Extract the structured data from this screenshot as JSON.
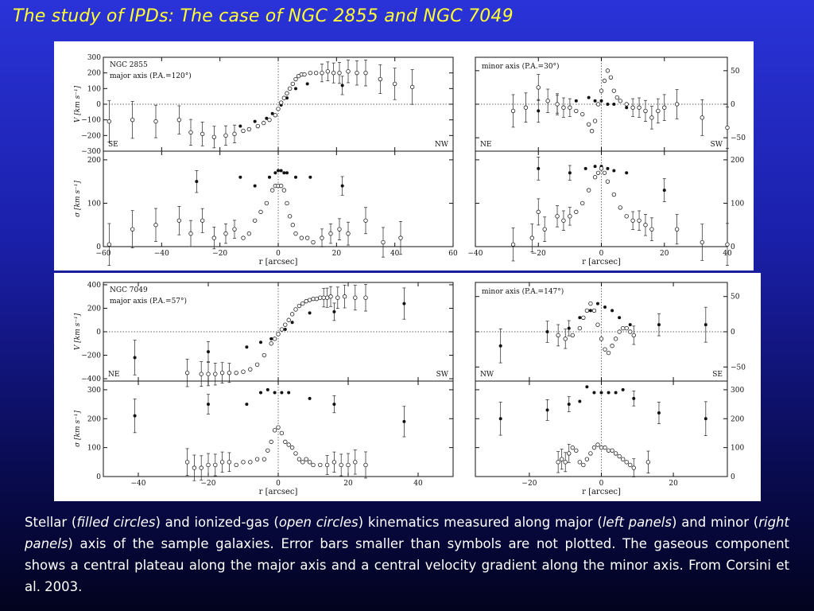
{
  "slide": {
    "title": "The study of IPDs: The case of NGC 2855 and NGC 7049"
  },
  "caption": {
    "p1": "Stellar (",
    "i1": "filled circles",
    "p2": ") and ionized-gas (",
    "i2": "open circles",
    "p3": ") kinematics measured along major (",
    "i3": "left panels",
    "p4": ") and minor (",
    "i4": "right panels",
    "p5": ") axis of the sample galaxies. Error bars smaller than symbols are not plotted. The gaseous component shows a central plateau along the major axis and a central velocity gradient along the minor axis. From Corsini et al. 2003."
  },
  "chart_data": [
    {
      "type": "scatter",
      "galaxy": "NGC 2855",
      "panel": "major-axis-velocity",
      "title": "NGC 2855",
      "subtitle": "major axis (P.A.=120°)",
      "xlabel": "r [arcsec]",
      "ylabel": "V [km s⁻¹]",
      "xlim": [
        -60,
        60
      ],
      "ylim": [
        -300,
        300
      ],
      "xticks": [
        -60,
        -40,
        -20,
        0,
        20,
        40,
        60
      ],
      "yticks": [
        -300,
        -200,
        -100,
        0,
        100,
        200,
        300
      ],
      "corner_left": "SE",
      "corner_right": "NW",
      "series": [
        {
          "marker": "filled",
          "x": [
            -13,
            -8,
            -4,
            -2,
            1,
            3,
            6,
            10,
            22
          ],
          "y": [
            -140,
            -110,
            -90,
            -60,
            -5,
            40,
            100,
            130,
            120
          ]
        },
        {
          "marker": "open",
          "x": [
            -58,
            -50,
            -42,
            -34,
            -30,
            -26,
            -22,
            -18,
            -15,
            -12,
            -10,
            -7,
            -5,
            -3,
            -1,
            0,
            1,
            2,
            3,
            4,
            5,
            6,
            7,
            8,
            9,
            11,
            13,
            15,
            17,
            19,
            21,
            24,
            27,
            30,
            35,
            40,
            46
          ],
          "y": [
            -110,
            -100,
            -110,
            -100,
            -180,
            -190,
            -210,
            -200,
            -190,
            -170,
            -160,
            -140,
            -120,
            -100,
            -70,
            -30,
            10,
            40,
            70,
            100,
            130,
            160,
            180,
            190,
            190,
            200,
            200,
            200,
            210,
            200,
            200,
            210,
            200,
            200,
            160,
            130,
            110
          ]
        }
      ]
    },
    {
      "type": "scatter",
      "galaxy": "NGC 2855",
      "panel": "major-axis-dispersion",
      "xlabel": "r [arcsec]",
      "ylabel": "σ [km s⁻¹]",
      "xlim": [
        -60,
        60
      ],
      "ylim": [
        0,
        220
      ],
      "xticks": [
        -60,
        -40,
        -20,
        0,
        20,
        40,
        60
      ],
      "yticks": [
        0,
        100,
        200
      ],
      "series": [
        {
          "marker": "filled",
          "x": [
            -28,
            -13,
            -8,
            -3,
            -1,
            0,
            1,
            2,
            3,
            6,
            11,
            22
          ],
          "y": [
            150,
            160,
            140,
            160,
            170,
            175,
            175,
            170,
            170,
            160,
            160,
            140
          ]
        },
        {
          "marker": "open",
          "x": [
            -58,
            -50,
            -42,
            -34,
            -30,
            -26,
            -22,
            -18,
            -15,
            -12,
            -10,
            -8,
            -6,
            -4,
            -2,
            -1,
            0,
            1,
            2,
            3,
            4,
            5,
            6,
            8,
            10,
            12,
            15,
            18,
            21,
            24,
            30,
            36,
            42
          ],
          "y": [
            5,
            40,
            50,
            60,
            30,
            60,
            20,
            30,
            40,
            20,
            30,
            60,
            80,
            100,
            130,
            140,
            140,
            140,
            130,
            100,
            70,
            50,
            30,
            20,
            20,
            10,
            20,
            30,
            40,
            30,
            60,
            10,
            20
          ]
        }
      ]
    },
    {
      "type": "scatter",
      "galaxy": "NGC 2855",
      "panel": "minor-axis-velocity",
      "subtitle": "minor axis (P.A.=30°)",
      "xlabel": "r [arcsec]",
      "xlim": [
        -40,
        40
      ],
      "ylim": [
        -70,
        70
      ],
      "xticks": [
        -40,
        -20,
        0,
        20,
        40
      ],
      "yticks": [
        -50,
        0,
        50
      ],
      "corner_left": "NE",
      "corner_right": "SW",
      "series": [
        {
          "marker": "filled",
          "x": [
            -20,
            -14,
            -8,
            -4,
            -2,
            0,
            2,
            4,
            8
          ],
          "y": [
            -10,
            0,
            5,
            10,
            5,
            5,
            0,
            0,
            -5
          ]
        },
        {
          "marker": "open",
          "x": [
            -28,
            -24,
            -20,
            -17,
            -14,
            -12,
            -10,
            -8,
            -6,
            -4,
            -3,
            -2,
            -1,
            0,
            1,
            2,
            3,
            4,
            5,
            6,
            8,
            10,
            12,
            14,
            16,
            18,
            20,
            24,
            32,
            40
          ],
          "y": [
            -10,
            -5,
            25,
            5,
            0,
            -5,
            -5,
            -10,
            -15,
            -30,
            -40,
            -25,
            0,
            20,
            35,
            50,
            40,
            20,
            10,
            5,
            0,
            -5,
            -5,
            -10,
            -20,
            -10,
            -5,
            0,
            -20,
            -35
          ]
        }
      ]
    },
    {
      "type": "scatter",
      "galaxy": "NGC 2855",
      "panel": "minor-axis-dispersion",
      "xlabel": "r [arcsec]",
      "xlim": [
        -40,
        40
      ],
      "ylim": [
        0,
        220
      ],
      "xticks": [
        -40,
        -20,
        0,
        20,
        40
      ],
      "yticks": [
        0,
        100,
        200
      ],
      "series": [
        {
          "marker": "filled",
          "x": [
            -20,
            -10,
            -5,
            -2,
            0,
            2,
            4,
            8,
            20
          ],
          "y": [
            180,
            170,
            180,
            185,
            185,
            180,
            175,
            170,
            130
          ]
        },
        {
          "marker": "open",
          "x": [
            -28,
            -22,
            -20,
            -18,
            -14,
            -12,
            -10,
            -8,
            -6,
            -4,
            -2,
            -1,
            0,
            1,
            2,
            4,
            6,
            8,
            10,
            12,
            14,
            16,
            24,
            32,
            40
          ],
          "y": [
            5,
            20,
            80,
            40,
            70,
            60,
            70,
            80,
            100,
            130,
            160,
            170,
            180,
            170,
            150,
            120,
            90,
            70,
            60,
            60,
            50,
            40,
            40,
            10,
            5
          ]
        }
      ]
    },
    {
      "type": "scatter",
      "galaxy": "NGC 7049",
      "panel": "major-axis-velocity",
      "title": "NGC 7049",
      "subtitle": "major axis (P.A.=57°)",
      "xlabel": "r [arcsec]",
      "ylabel": "V [km s⁻¹]",
      "xlim": [
        -50,
        50
      ],
      "ylim": [
        -420,
        420
      ],
      "xticks": [
        -40,
        -20,
        0,
        20,
        40
      ],
      "yticks": [
        -400,
        -200,
        0,
        200,
        400
      ],
      "corner_left": "NE",
      "corner_right": "SW",
      "series": [
        {
          "marker": "filled",
          "x": [
            -41,
            -20,
            -9,
            -5,
            -2,
            0,
            2,
            4,
            9,
            16,
            36
          ],
          "y": [
            -220,
            -170,
            -130,
            -90,
            -60,
            -20,
            20,
            80,
            160,
            170,
            240
          ]
        },
        {
          "marker": "open",
          "x": [
            -26,
            -22,
            -20,
            -18,
            -16,
            -14,
            -12,
            -10,
            -8,
            -6,
            -4,
            -2,
            -1,
            0,
            1,
            2,
            3,
            4,
            5,
            6,
            7,
            8,
            9,
            10,
            11,
            12,
            13,
            14,
            15,
            17,
            19,
            22,
            25
          ],
          "y": [
            -350,
            -360,
            -360,
            -360,
            -350,
            -350,
            -350,
            -340,
            -320,
            -280,
            -200,
            -100,
            -60,
            -20,
            20,
            60,
            100,
            150,
            190,
            220,
            240,
            260,
            270,
            280,
            280,
            290,
            290,
            290,
            300,
            290,
            300,
            290,
            290
          ]
        }
      ]
    },
    {
      "type": "scatter",
      "galaxy": "NGC 7049",
      "panel": "major-axis-dispersion",
      "xlabel": "r [arcsec]",
      "ylabel": "σ [km s⁻¹]",
      "xlim": [
        -50,
        50
      ],
      "ylim": [
        0,
        330
      ],
      "xticks": [
        -40,
        -20,
        0,
        20,
        40
      ],
      "yticks": [
        0,
        100,
        200,
        300
      ],
      "series": [
        {
          "marker": "filled",
          "x": [
            -41,
            -20,
            -9,
            -5,
            -3,
            -1,
            1,
            3,
            9,
            16,
            36
          ],
          "y": [
            210,
            250,
            250,
            290,
            300,
            290,
            290,
            290,
            270,
            250,
            190
          ]
        },
        {
          "marker": "open",
          "x": [
            -26,
            -24,
            -22,
            -20,
            -18,
            -16,
            -14,
            -12,
            -10,
            -8,
            -6,
            -4,
            -3,
            -2,
            -1,
            0,
            1,
            2,
            3,
            4,
            5,
            6,
            7,
            8,
            9,
            10,
            12,
            14,
            16,
            18,
            20,
            22,
            25
          ],
          "y": [
            50,
            30,
            30,
            40,
            40,
            50,
            50,
            40,
            50,
            50,
            60,
            60,
            90,
            120,
            160,
            170,
            150,
            120,
            110,
            100,
            80,
            60,
            50,
            60,
            50,
            40,
            40,
            40,
            50,
            40,
            40,
            50,
            40
          ]
        }
      ]
    },
    {
      "type": "scatter",
      "galaxy": "NGC 7049",
      "panel": "minor-axis-velocity",
      "subtitle": "minor axis (P.A.=147°)",
      "xlabel": "r [arcsec]",
      "xlim": [
        -35,
        35
      ],
      "ylim": [
        -70,
        70
      ],
      "xticks": [
        -20,
        0,
        20
      ],
      "yticks": [
        -50,
        0,
        50
      ],
      "corner_left": "NW",
      "corner_right": "SE",
      "series": [
        {
          "marker": "filled",
          "x": [
            -28,
            -15,
            -9,
            -6,
            -3,
            -1,
            1,
            3,
            5,
            8,
            16,
            29
          ],
          "y": [
            -20,
            0,
            5,
            20,
            30,
            40,
            35,
            30,
            20,
            10,
            10,
            10
          ]
        },
        {
          "marker": "open",
          "x": [
            -12,
            -10,
            -8,
            -6,
            -5,
            -4,
            -3,
            -2,
            -1,
            0,
            1,
            2,
            3,
            4,
            5,
            6,
            7,
            8,
            9
          ],
          "y": [
            -5,
            -10,
            -5,
            5,
            20,
            30,
            40,
            30,
            10,
            -10,
            -25,
            -30,
            -20,
            -10,
            0,
            5,
            5,
            0,
            -5
          ]
        }
      ]
    },
    {
      "type": "scatter",
      "galaxy": "NGC 7049",
      "panel": "minor-axis-dispersion",
      "xlabel": "r [arcsec]",
      "xlim": [
        -35,
        35
      ],
      "ylim": [
        0,
        330
      ],
      "xticks": [
        -20,
        0,
        20
      ],
      "yticks": [
        0,
        100,
        200,
        300
      ],
      "series": [
        {
          "marker": "filled",
          "x": [
            -28,
            -15,
            -9,
            -6,
            -4,
            -2,
            0,
            2,
            4,
            6,
            9,
            16,
            29
          ],
          "y": [
            200,
            230,
            250,
            260,
            310,
            290,
            290,
            290,
            290,
            300,
            270,
            220,
            200
          ]
        },
        {
          "marker": "open",
          "x": [
            -12,
            -11,
            -10,
            -9,
            -8,
            -7,
            -6,
            -5,
            -4,
            -3,
            -2,
            -1,
            0,
            1,
            2,
            3,
            4,
            5,
            6,
            7,
            8,
            9,
            13
          ],
          "y": [
            50,
            60,
            50,
            80,
            100,
            90,
            50,
            40,
            60,
            80,
            100,
            110,
            100,
            100,
            90,
            90,
            80,
            70,
            60,
            50,
            40,
            30,
            50
          ]
        }
      ]
    }
  ]
}
